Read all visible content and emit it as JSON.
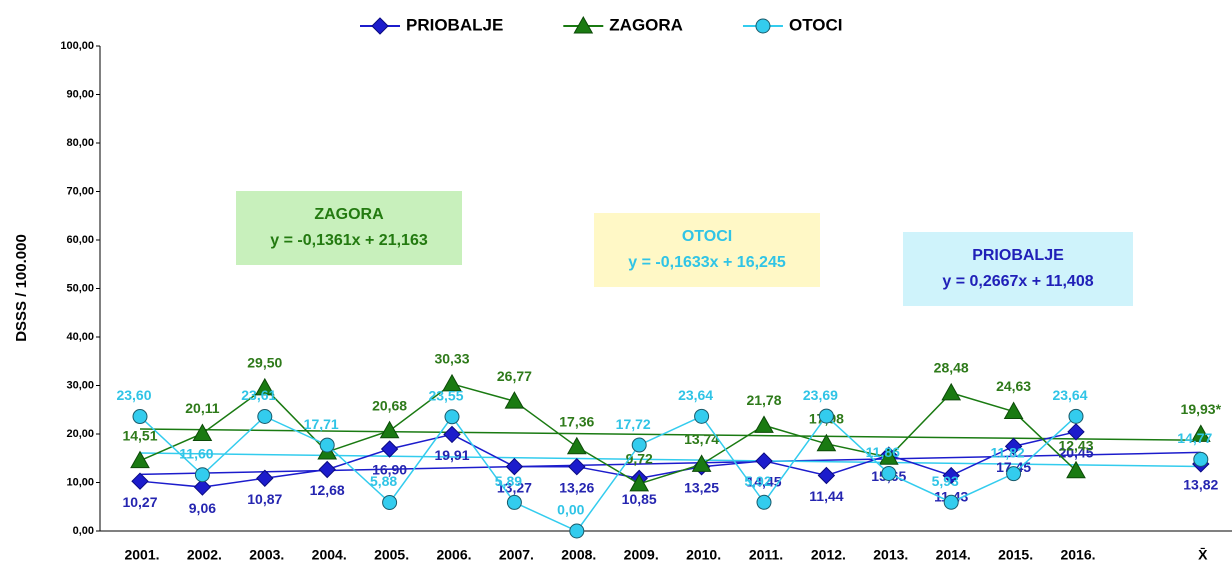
{
  "chart_data": {
    "type": "line",
    "y_label": "DSSS / 100.000",
    "categories": [
      "2001.",
      "2002.",
      "2003.",
      "2004.",
      "2005.",
      "2006.",
      "2007.",
      "2008.",
      "2009.",
      "2010.",
      "2011.",
      "2012.",
      "2013.",
      "2014.",
      "2015.",
      "2016.",
      null,
      "X̄"
    ],
    "ylim": [
      0,
      100
    ],
    "yticks": [
      {
        "value": 0,
        "label": "0,00"
      },
      {
        "value": 10,
        "label": "10,00"
      },
      {
        "value": 20,
        "label": "20,00"
      },
      {
        "value": 30,
        "label": "30,00"
      },
      {
        "value": 40,
        "label": "40,00"
      },
      {
        "value": 50,
        "label": "50,00"
      },
      {
        "value": 60,
        "label": "60,00"
      },
      {
        "value": 70,
        "label": "70,00"
      },
      {
        "value": 80,
        "label": "80,00"
      },
      {
        "value": 90,
        "label": "90,00"
      },
      {
        "value": 100,
        "label": "100,00"
      }
    ],
    "legend": "top",
    "series": [
      {
        "name": "PRIOBALJE",
        "color": "#1c1ccc",
        "label_color": "#2525b0",
        "marker": "diamond",
        "values": [
          10.27,
          9.06,
          10.87,
          12.68,
          16.9,
          19.91,
          13.27,
          13.26,
          10.85,
          13.25,
          14.45,
          11.44,
          15.65,
          11.43,
          17.45,
          20.45,
          null,
          13.82
        ],
        "value_labels": [
          "10,27",
          "9,06",
          "10,87",
          "12,68",
          "16,90",
          "19,91",
          "13,27",
          "13,26",
          "10,85",
          "13,25",
          "14,45",
          "11,44",
          "15,65",
          "11,43",
          "17,45",
          "20,45",
          null,
          "13,82"
        ],
        "trend": {
          "title": "PRIOBALJE",
          "equation": "y = 0,2667x + 11,408",
          "box": "#cff3fb",
          "text_color": "#2020b8"
        }
      },
      {
        "name": "ZAGORA",
        "color": "#1a7a12",
        "label_color": "#2e7a1a",
        "marker": "triangle",
        "values": [
          14.51,
          20.11,
          29.5,
          16.3,
          20.68,
          30.33,
          26.77,
          17.36,
          9.72,
          13.74,
          21.78,
          17.98,
          15.2,
          28.48,
          24.63,
          12.43,
          null,
          19.93
        ],
        "value_labels": [
          "14,51",
          "20,11",
          "29,50",
          null,
          "20,68",
          "30,33",
          "26,77",
          "17,36",
          "9,72",
          "13,74",
          "21,78",
          "17,98",
          null,
          "28,48",
          "24,63",
          "12,43",
          null,
          "19,93*"
        ],
        "trend": {
          "title": "ZAGORA",
          "equation": "y = -0,1361x + 21,163",
          "box": "#c8f0bc",
          "text_color": "#237a10"
        }
      },
      {
        "name": "OTOCI",
        "color": "#33ccee",
        "label_color": "#30c4e6",
        "marker": "circle",
        "values": [
          23.6,
          11.6,
          23.61,
          17.71,
          5.88,
          23.55,
          5.89,
          0.0,
          17.72,
          23.64,
          5.92,
          23.69,
          11.86,
          5.93,
          11.82,
          23.64,
          null,
          14.77
        ],
        "value_labels": [
          "23,60",
          "11,60",
          "23,61",
          "17,71",
          "5,88",
          "23,55",
          "5,89",
          "0,00",
          "17,72",
          "23,64",
          "5,92",
          "23,69",
          "11,86",
          "5,93",
          "11,82",
          "23,64",
          null,
          "14,77"
        ],
        "trend": {
          "title": "OTOCI",
          "equation": "y = -0,1633x + 16,245",
          "box": "#fff8c6",
          "text_color": "#30c4e6"
        }
      }
    ]
  }
}
